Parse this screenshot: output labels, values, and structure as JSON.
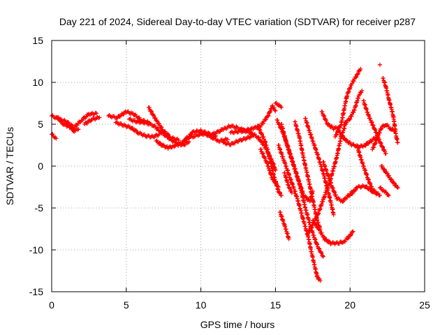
{
  "chart_data": {
    "type": "scatter",
    "title": "Day 221 of 2024, Sidereal Day-to-day VTEC variation (SDTVAR) for receiver p287",
    "xlabel": "GPS time / hours",
    "ylabel": "SDTVAR / TECUs",
    "xlim": [
      0,
      25
    ],
    "ylim": [
      -15,
      15
    ],
    "xticks": [
      0,
      5,
      10,
      15,
      20,
      25
    ],
    "yticks": [
      -15,
      -10,
      -5,
      0,
      5,
      10,
      15
    ],
    "grid": true,
    "marker": "+",
    "color": "#ff0000",
    "series_note": "Each trace is one satellite arc; values read approximately from the plot.",
    "traces": [
      [
        [
          0,
          6.0
        ],
        [
          0.5,
          5.6
        ],
        [
          1.0,
          5.3
        ],
        [
          1.5,
          4.6
        ],
        [
          2.0,
          5.5
        ],
        [
          2.5,
          6.2
        ],
        [
          3.0,
          6.3
        ]
      ],
      [
        [
          0,
          3.8
        ],
        [
          0.3,
          3.3
        ]
      ],
      [
        [
          0.4,
          5.8
        ],
        [
          0.8,
          5.0
        ],
        [
          1.2,
          4.7
        ],
        [
          1.5,
          4.2
        ],
        [
          1.8,
          4.4
        ]
      ],
      [
        [
          2.2,
          5.0
        ],
        [
          2.7,
          5.6
        ],
        [
          3.2,
          5.8
        ]
      ],
      [
        [
          3.8,
          6.0
        ],
        [
          4.4,
          5.8
        ],
        [
          5.0,
          6.5
        ],
        [
          5.5,
          6.2
        ],
        [
          6.0,
          5.5
        ],
        [
          6.5,
          5.2
        ]
      ],
      [
        [
          4.3,
          5.2
        ],
        [
          4.8,
          4.9
        ],
        [
          5.3,
          4.6
        ],
        [
          5.8,
          4.0
        ],
        [
          6.3,
          3.6
        ],
        [
          6.8,
          3.5
        ],
        [
          7.2,
          3.8
        ]
      ],
      [
        [
          5.2,
          5.6
        ],
        [
          5.7,
          5.3
        ],
        [
          6.2,
          5.2
        ],
        [
          6.8,
          4.9
        ],
        [
          7.3,
          4.1
        ],
        [
          7.8,
          3.4
        ],
        [
          8.3,
          2.8
        ],
        [
          8.8,
          2.5
        ],
        [
          9.2,
          2.9
        ]
      ],
      [
        [
          6.5,
          7.0
        ],
        [
          7.0,
          5.5
        ],
        [
          7.5,
          4.2
        ],
        [
          8.0,
          3.4
        ],
        [
          8.5,
          3.1
        ]
      ],
      [
        [
          7.0,
          3.0
        ],
        [
          7.4,
          2.5
        ],
        [
          7.8,
          2.2
        ],
        [
          8.2,
          2.4
        ],
        [
          8.7,
          2.7
        ],
        [
          9.1,
          3.4
        ],
        [
          9.5,
          4.1
        ],
        [
          10.0,
          4.2
        ],
        [
          10.5,
          3.9
        ],
        [
          11.0,
          3.6
        ]
      ],
      [
        [
          9.0,
          3.3
        ],
        [
          9.6,
          3.6
        ],
        [
          10.2,
          3.9
        ],
        [
          10.8,
          3.4
        ],
        [
          11.2,
          3.0
        ],
        [
          11.8,
          3.2
        ]
      ],
      [
        [
          10.8,
          3.8
        ],
        [
          11.5,
          4.4
        ],
        [
          12.0,
          4.8
        ],
        [
          12.6,
          4.5
        ],
        [
          13.0,
          4.2
        ]
      ],
      [
        [
          11.5,
          2.8
        ],
        [
          12.0,
          2.6
        ],
        [
          12.5,
          3.0
        ],
        [
          13.0,
          3.3
        ],
        [
          13.5,
          3.6
        ]
      ],
      [
        [
          12.0,
          4.0
        ],
        [
          12.8,
          4.2
        ],
        [
          13.5,
          4.5
        ],
        [
          14.0,
          4.8
        ],
        [
          14.5,
          6.0
        ],
        [
          14.8,
          7.2
        ],
        [
          15.0,
          6.6
        ]
      ],
      [
        [
          12.8,
          4.3
        ],
        [
          13.3,
          4.0
        ],
        [
          13.8,
          3.5
        ],
        [
          14.3,
          2.3
        ],
        [
          14.8,
          0.5
        ],
        [
          15.0,
          -0.5
        ]
      ],
      [
        [
          13.8,
          4.8
        ],
        [
          14.3,
          3.0
        ],
        [
          14.6,
          1.0
        ],
        [
          14.9,
          -1.2
        ],
        [
          15.2,
          -3.0
        ],
        [
          15.4,
          -3.5
        ]
      ],
      [
        [
          14.0,
          2.0
        ],
        [
          14.4,
          0.5
        ],
        [
          14.8,
          -1.5
        ],
        [
          15.2,
          -2.5
        ]
      ],
      [
        [
          15.0,
          7.5
        ],
        [
          15.2,
          7.3
        ],
        [
          15.4,
          7.0
        ]
      ],
      [
        [
          15.1,
          5.5
        ],
        [
          15.5,
          4.0
        ],
        [
          15.8,
          2.5
        ],
        [
          16.2,
          0.3
        ],
        [
          16.6,
          -2.0
        ],
        [
          17.0,
          -5.0
        ],
        [
          17.4,
          -7.5
        ],
        [
          17.8,
          -9.5
        ],
        [
          18.2,
          -10.8
        ]
      ],
      [
        [
          15.2,
          2.5
        ],
        [
          15.6,
          0.5
        ],
        [
          16.0,
          -1.5
        ],
        [
          16.4,
          -3.5
        ],
        [
          16.8,
          -6.0
        ],
        [
          17.2,
          -8.5
        ],
        [
          17.5,
          -11.0
        ],
        [
          17.8,
          -13.2
        ],
        [
          18.0,
          -13.7
        ]
      ],
      [
        [
          15.3,
          -5.5
        ],
        [
          15.6,
          -7.0
        ],
        [
          15.9,
          -8.7
        ]
      ],
      [
        [
          15.4,
          5.0
        ],
        [
          15.7,
          3.0
        ],
        [
          16.1,
          0.7
        ],
        [
          16.5,
          -1.5
        ],
        [
          16.9,
          -3.5
        ],
        [
          17.3,
          -4.2
        ],
        [
          17.5,
          -3.0
        ]
      ],
      [
        [
          15.6,
          -0.8
        ],
        [
          15.9,
          -2.5
        ],
        [
          16.1,
          -3.2
        ]
      ],
      [
        [
          16.3,
          5.3
        ],
        [
          16.6,
          3.5
        ],
        [
          16.9,
          0.8
        ],
        [
          17.2,
          -1.5
        ],
        [
          17.5,
          -4.0
        ],
        [
          17.8,
          -6.5
        ],
        [
          18.0,
          -7.5
        ]
      ],
      [
        [
          17.0,
          5.7
        ],
        [
          17.4,
          3.5
        ],
        [
          17.8,
          1.5
        ],
        [
          18.2,
          -0.8
        ],
        [
          18.6,
          -3.5
        ],
        [
          18.9,
          -5.8
        ]
      ],
      [
        [
          17.2,
          -8.0
        ],
        [
          17.5,
          -7.0
        ],
        [
          17.9,
          -5.5
        ],
        [
          18.3,
          -3.5
        ],
        [
          18.7,
          -1.5
        ],
        [
          19.1,
          1.0
        ],
        [
          19.4,
          3.5
        ],
        [
          19.7,
          5.0
        ]
      ],
      [
        [
          17.5,
          -6.5
        ],
        [
          17.9,
          -7.5
        ],
        [
          18.3,
          -8.7
        ],
        [
          18.7,
          -9.2
        ],
        [
          19.2,
          -9.2
        ],
        [
          19.6,
          -9.0
        ],
        [
          20.0,
          -8.3
        ],
        [
          20.2,
          -7.8
        ]
      ],
      [
        [
          18.2,
          0.5
        ],
        [
          18.5,
          -1.0
        ],
        [
          18.8,
          -2.5
        ],
        [
          19.1,
          -3.8
        ],
        [
          19.5,
          -4.2
        ],
        [
          19.9,
          -3.5
        ],
        [
          20.2,
          -3.0
        ]
      ],
      [
        [
          18.1,
          6.5
        ],
        [
          18.5,
          5.0
        ],
        [
          18.9,
          4.5
        ],
        [
          19.2,
          4.6
        ]
      ],
      [
        [
          19.0,
          3.5
        ],
        [
          19.4,
          5.0
        ],
        [
          19.8,
          8.5
        ],
        [
          20.1,
          9.8
        ],
        [
          20.5,
          11.0
        ],
        [
          20.7,
          11.6
        ]
      ],
      [
        [
          19.3,
          4.0
        ],
        [
          19.7,
          3.1
        ],
        [
          20.1,
          2.6
        ],
        [
          20.6,
          2.3
        ],
        [
          21.0,
          2.5
        ],
        [
          21.4,
          3.0
        ],
        [
          21.8,
          3.5
        ]
      ],
      [
        [
          19.6,
          5.0
        ],
        [
          20.0,
          5.7
        ],
        [
          20.3,
          6.8
        ],
        [
          20.6,
          8.5
        ],
        [
          20.8,
          9.0
        ]
      ],
      [
        [
          20.0,
          -3.5
        ],
        [
          20.5,
          -2.5
        ],
        [
          21.0,
          -2.4
        ],
        [
          21.5,
          -3.0
        ],
        [
          22.0,
          -3.5
        ]
      ],
      [
        [
          20.5,
          2.2
        ],
        [
          20.8,
          0.5
        ],
        [
          21.2,
          -1.5
        ],
        [
          21.5,
          -2.8
        ],
        [
          21.8,
          -3.2
        ]
      ],
      [
        [
          20.9,
          7.8
        ],
        [
          21.2,
          6.2
        ],
        [
          21.5,
          5.0
        ],
        [
          21.8,
          3.8
        ],
        [
          22.1,
          2.5
        ],
        [
          22.4,
          1.5
        ]
      ],
      [
        [
          21.5,
          2.0
        ],
        [
          21.8,
          3.2
        ],
        [
          22.1,
          4.6
        ],
        [
          22.4,
          5.0
        ],
        [
          22.7,
          4.5
        ],
        [
          23.0,
          4.2
        ]
      ],
      [
        [
          22.0,
          -2.6
        ],
        [
          22.3,
          -3.0
        ],
        [
          22.6,
          -3.5
        ]
      ],
      [
        [
          22.1,
          0.0
        ],
        [
          22.4,
          -0.7
        ],
        [
          22.7,
          -1.5
        ],
        [
          23.0,
          -2.2
        ],
        [
          23.2,
          -2.6
        ]
      ],
      [
        [
          22.2,
          10.5
        ],
        [
          22.4,
          9.5
        ],
        [
          22.6,
          8.0
        ],
        [
          22.9,
          6.0
        ],
        [
          23.1,
          3.5
        ],
        [
          23.2,
          2.8
        ]
      ],
      [
        [
          22.0,
          12.1
        ]
      ]
    ]
  }
}
